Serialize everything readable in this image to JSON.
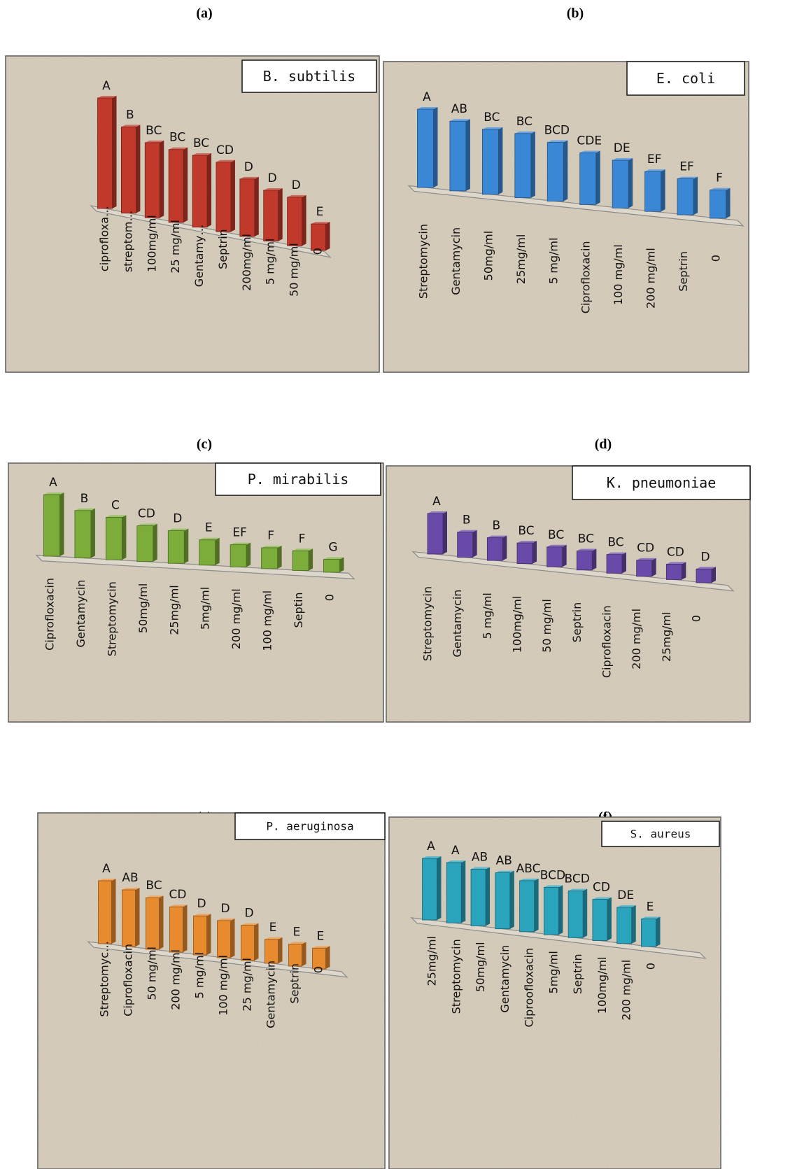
{
  "panel_labels": [
    "(a)",
    "(b)",
    "(c)",
    "(d)",
    "(e)",
    "(f)"
  ],
  "colors": {
    "background": "#d9d0bf",
    "panel_border": "#555555"
  },
  "chart_data": [
    {
      "type": "bar",
      "title": "B. subtilis",
      "color": "#c0392b",
      "categories": [
        "ciprofloxa…",
        "streptom…",
        "100mg/ml",
        "25 mg/ml",
        "Gentamy…",
        "Septrin",
        "200mg/ml",
        "5 mg/ml",
        "50 mg/ml",
        "0"
      ],
      "values": [
        10,
        7.8,
        6.8,
        6.6,
        6.5,
        6.3,
        5.2,
        4.6,
        4.4,
        2.4
      ],
      "letters": [
        "A",
        "B",
        "BC",
        "BC",
        "BC",
        "CD",
        "D",
        "D",
        "D",
        "E"
      ]
    },
    {
      "type": "bar",
      "title": "E. coli",
      "color": "#3a87d6",
      "categories": [
        "Streptomycin",
        "Gentamycin",
        "50mg/ml",
        "25mg/ml",
        "5 mg/ml",
        "Ciprofloxacin",
        "100 mg/ml",
        "200 mg/ml",
        "Septrin",
        "0"
      ],
      "values": [
        10,
        8.9,
        8.3,
        8.2,
        7.5,
        6.6,
        6.1,
        5.1,
        4.6,
        3.6
      ],
      "letters": [
        "A",
        "AB",
        "BC",
        "BC",
        "BCD",
        "CDE",
        "DE",
        "EF",
        "EF",
        "F"
      ]
    },
    {
      "type": "bar",
      "title": "P. mirabilis",
      "color": "#7cad3a",
      "categories": [
        "Ciprofloxacin",
        "Gentamycin",
        "Streptomycin",
        "50mg/ml",
        "25mg/ml",
        "5mg/ml",
        "200 mg/ml",
        "100 mg/ml",
        "Septin",
        "0"
      ],
      "values": [
        10,
        7.7,
        6.9,
        5.8,
        5.3,
        4.1,
        3.6,
        3.4,
        3.2,
        2.1
      ],
      "letters": [
        "A",
        "B",
        "C",
        "CD",
        "D",
        "E",
        "EF",
        "F",
        "F",
        "G"
      ]
    },
    {
      "type": "bar",
      "title": "K. pneumoniae",
      "color": "#6a4aa8",
      "categories": [
        "Streptomycin",
        "Gentamycin",
        "5 mg/ml",
        "100mg/ml",
        "50 mg/ml",
        "Septrin",
        "Ciprofloxacin",
        "200 mg/ml",
        "25mg/ml",
        "0"
      ],
      "values": [
        10,
        6.2,
        5.6,
        5.1,
        4.9,
        4.7,
        4.6,
        4.0,
        3.8,
        3.4
      ],
      "letters": [
        "A",
        "B",
        "B",
        "BC",
        "BC",
        "BC",
        "BC",
        "CD",
        "CD",
        "D"
      ]
    },
    {
      "type": "bar",
      "title": "P. aeruginosa",
      "color": "#e88a2e",
      "categories": [
        "Streptomyc…",
        "Ciprofloxacin",
        "50 mg/ml",
        "200 mg/ml",
        "5 mg/ml",
        "100 mg/ml",
        "25 mg/ml",
        "Gentamycin",
        "Septrin",
        "0"
      ],
      "values": [
        10,
        9.0,
        8.2,
        7.2,
        6.2,
        5.9,
        5.6,
        3.8,
        3.5,
        3.3
      ],
      "letters": [
        "A",
        "AB",
        "BC",
        "CD",
        "D",
        "D",
        "D",
        "E",
        "E",
        "E"
      ]
    },
    {
      "type": "bar",
      "title": "S. aureus",
      "color": "#2aa3bd",
      "categories": [
        "25mg/ml",
        "Streptomycin",
        "50mg/ml",
        "Gentamycin",
        "Ciproofloxacin",
        "5mg/ml",
        "Septrin",
        "100mg/ml",
        "200 mg/ml",
        "0"
      ],
      "values": [
        10,
        9.8,
        9.2,
        9.1,
        8.3,
        7.7,
        7.6,
        6.7,
        5.9,
        4.5
      ],
      "letters": [
        "A",
        "A",
        "AB",
        "AB",
        "ABC",
        "BCD",
        "BCD",
        "CD",
        "DE",
        "E"
      ]
    }
  ]
}
